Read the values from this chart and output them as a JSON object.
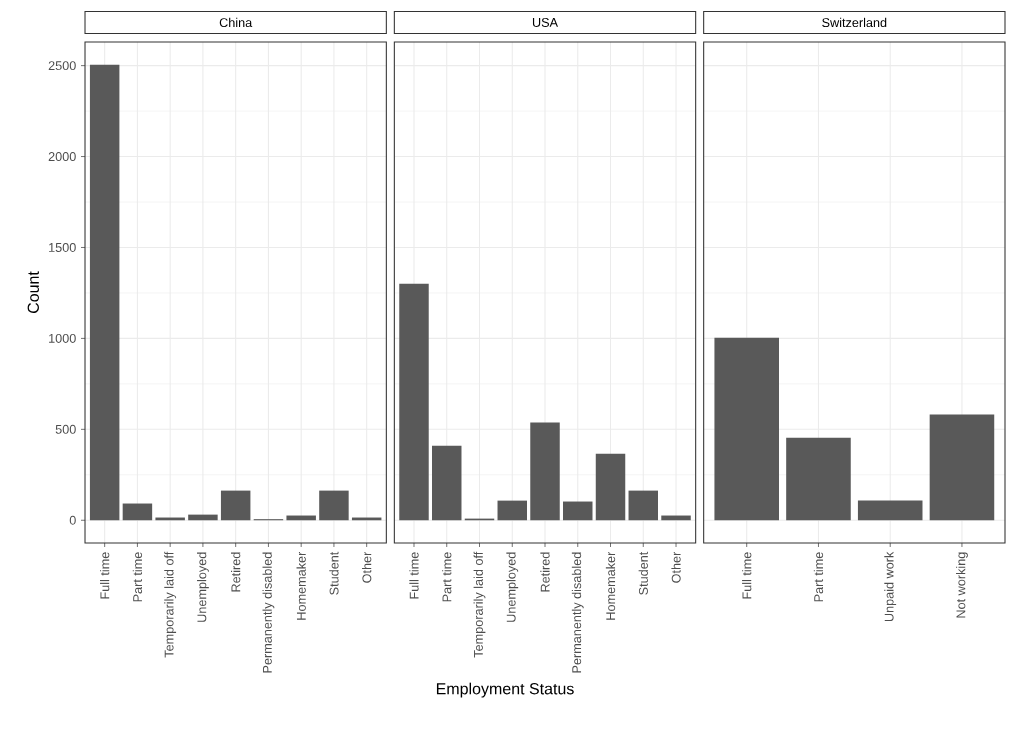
{
  "chart_data": [
    {
      "type": "bar",
      "title": "China",
      "categories": [
        "Full time",
        "Part time",
        "Temporarily laid off",
        "Unemployed",
        "Retired",
        "Permanently disabled",
        "Homemaker",
        "Student",
        "Other"
      ],
      "values": [
        2505,
        92,
        15,
        31,
        163,
        6,
        26,
        163,
        15
      ],
      "color": "#595959",
      "ylim": [
        -125,
        2630
      ],
      "yticks": [
        0,
        500,
        1000,
        1500,
        2000,
        2500
      ],
      "ylabel": "Count",
      "grid": true
    },
    {
      "type": "bar",
      "title": "USA",
      "categories": [
        "Full time",
        "Part time",
        "Temporarily laid off",
        "Unemployed",
        "Retired",
        "Permanently disabled",
        "Homemaker",
        "Student",
        "Other"
      ],
      "values": [
        1300,
        410,
        9,
        108,
        537,
        103,
        366,
        163,
        26
      ],
      "color": "#595959",
      "ylim": [
        -125,
        2630
      ],
      "yticks": [
        0,
        500,
        1000,
        1500,
        2000,
        2500
      ],
      "xlabel": "Employment Status",
      "grid": true,
      "tick_labels": "x"
    },
    {
      "type": "bar",
      "title": "Switzerland",
      "categories": [
        "Full time",
        "Part time",
        "Unpaid work",
        "Not working"
      ],
      "values": [
        1004,
        454,
        108,
        581
      ],
      "color": "#595959",
      "ylim": [
        -125,
        2630
      ],
      "yticks": [
        0,
        500,
        1000,
        1500,
        2000,
        2500
      ],
      "grid": true,
      "tick_labels": "x"
    }
  ]
}
